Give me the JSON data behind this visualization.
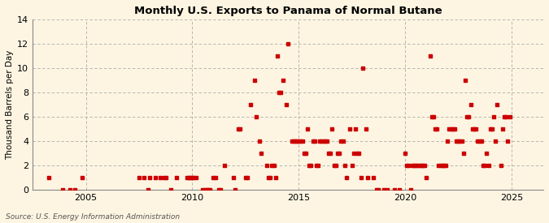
{
  "title": "Monthly U.S. Exports to Panama of Normal Butane",
  "ylabel": "Thousand Barrels per Day",
  "source": "Source: U.S. Energy Information Administration",
  "bg_color": "#fdf5e2",
  "plot_bg_color": "#fdf5e2",
  "marker_color": "#cc0000",
  "ylim": [
    0,
    14
  ],
  "yticks": [
    0,
    2,
    4,
    6,
    8,
    10,
    12,
    14
  ],
  "xlim": [
    2002.5,
    2026.5
  ],
  "xticks": [
    2005,
    2010,
    2015,
    2020,
    2025
  ],
  "data": [
    [
      2003.25,
      1
    ],
    [
      2003.92,
      0
    ],
    [
      2004.25,
      0
    ],
    [
      2004.5,
      0
    ],
    [
      2004.83,
      1
    ],
    [
      2007.5,
      1
    ],
    [
      2007.75,
      1
    ],
    [
      2007.92,
      0
    ],
    [
      2008.0,
      1
    ],
    [
      2008.25,
      1
    ],
    [
      2008.5,
      1
    ],
    [
      2008.67,
      1
    ],
    [
      2008.75,
      1
    ],
    [
      2009.0,
      0
    ],
    [
      2009.25,
      1
    ],
    [
      2009.75,
      1
    ],
    [
      2009.83,
      1
    ],
    [
      2009.92,
      1
    ],
    [
      2010.0,
      1
    ],
    [
      2010.08,
      1
    ],
    [
      2010.17,
      1
    ],
    [
      2010.5,
      0
    ],
    [
      2010.58,
      0
    ],
    [
      2010.67,
      0
    ],
    [
      2010.75,
      0
    ],
    [
      2010.83,
      0
    ],
    [
      2011.0,
      1
    ],
    [
      2011.08,
      1
    ],
    [
      2011.25,
      0
    ],
    [
      2011.33,
      0
    ],
    [
      2011.5,
      2
    ],
    [
      2011.92,
      1
    ],
    [
      2012.0,
      0
    ],
    [
      2012.17,
      5
    ],
    [
      2012.25,
      5
    ],
    [
      2012.5,
      1
    ],
    [
      2012.58,
      1
    ],
    [
      2012.75,
      7
    ],
    [
      2012.92,
      9
    ],
    [
      2013.0,
      6
    ],
    [
      2013.17,
      4
    ],
    [
      2013.25,
      3
    ],
    [
      2013.5,
      2
    ],
    [
      2013.58,
      1
    ],
    [
      2013.67,
      1
    ],
    [
      2013.75,
      2
    ],
    [
      2013.83,
      2
    ],
    [
      2013.92,
      1
    ],
    [
      2014.0,
      11
    ],
    [
      2014.08,
      8
    ],
    [
      2014.17,
      8
    ],
    [
      2014.25,
      9
    ],
    [
      2014.42,
      7
    ],
    [
      2014.5,
      12
    ],
    [
      2014.67,
      4
    ],
    [
      2014.75,
      4
    ],
    [
      2014.83,
      4
    ],
    [
      2014.92,
      4
    ],
    [
      2015.0,
      4
    ],
    [
      2015.08,
      4
    ],
    [
      2015.17,
      4
    ],
    [
      2015.25,
      3
    ],
    [
      2015.33,
      3
    ],
    [
      2015.42,
      5
    ],
    [
      2015.5,
      2
    ],
    [
      2015.58,
      2
    ],
    [
      2015.67,
      4
    ],
    [
      2015.75,
      4
    ],
    [
      2015.83,
      2
    ],
    [
      2015.92,
      2
    ],
    [
      2016.0,
      4
    ],
    [
      2016.08,
      4
    ],
    [
      2016.17,
      4
    ],
    [
      2016.25,
      4
    ],
    [
      2016.33,
      4
    ],
    [
      2016.42,
      3
    ],
    [
      2016.5,
      3
    ],
    [
      2016.58,
      5
    ],
    [
      2016.67,
      2
    ],
    [
      2016.75,
      2
    ],
    [
      2016.83,
      3
    ],
    [
      2016.92,
      3
    ],
    [
      2017.0,
      4
    ],
    [
      2017.08,
      4
    ],
    [
      2017.17,
      2
    ],
    [
      2017.25,
      1
    ],
    [
      2017.42,
      5
    ],
    [
      2017.5,
      2
    ],
    [
      2017.58,
      3
    ],
    [
      2017.67,
      5
    ],
    [
      2017.75,
      3
    ],
    [
      2017.83,
      3
    ],
    [
      2017.92,
      1
    ],
    [
      2018.0,
      10
    ],
    [
      2018.17,
      5
    ],
    [
      2018.25,
      1
    ],
    [
      2018.5,
      1
    ],
    [
      2018.67,
      0
    ],
    [
      2018.75,
      0
    ],
    [
      2019.0,
      0
    ],
    [
      2019.17,
      0
    ],
    [
      2019.5,
      0
    ],
    [
      2019.75,
      0
    ],
    [
      2020.0,
      3
    ],
    [
      2020.08,
      2
    ],
    [
      2020.17,
      2
    ],
    [
      2020.25,
      0
    ],
    [
      2020.33,
      2
    ],
    [
      2020.42,
      2
    ],
    [
      2020.5,
      2
    ],
    [
      2020.58,
      2
    ],
    [
      2020.67,
      2
    ],
    [
      2020.75,
      2
    ],
    [
      2020.83,
      2
    ],
    [
      2020.92,
      2
    ],
    [
      2021.0,
      1
    ],
    [
      2021.17,
      11
    ],
    [
      2021.25,
      6
    ],
    [
      2021.33,
      6
    ],
    [
      2021.42,
      5
    ],
    [
      2021.5,
      5
    ],
    [
      2021.58,
      2
    ],
    [
      2021.67,
      2
    ],
    [
      2021.75,
      2
    ],
    [
      2021.83,
      2
    ],
    [
      2021.92,
      2
    ],
    [
      2022.0,
      4
    ],
    [
      2022.08,
      5
    ],
    [
      2022.17,
      5
    ],
    [
      2022.25,
      5
    ],
    [
      2022.33,
      5
    ],
    [
      2022.42,
      4
    ],
    [
      2022.5,
      4
    ],
    [
      2022.58,
      4
    ],
    [
      2022.67,
      4
    ],
    [
      2022.75,
      3
    ],
    [
      2022.83,
      9
    ],
    [
      2022.92,
      6
    ],
    [
      2023.0,
      6
    ],
    [
      2023.08,
      7
    ],
    [
      2023.17,
      5
    ],
    [
      2023.25,
      5
    ],
    [
      2023.33,
      5
    ],
    [
      2023.42,
      4
    ],
    [
      2023.5,
      4
    ],
    [
      2023.58,
      4
    ],
    [
      2023.67,
      2
    ],
    [
      2023.75,
      2
    ],
    [
      2023.83,
      3
    ],
    [
      2023.92,
      2
    ],
    [
      2024.0,
      5
    ],
    [
      2024.08,
      5
    ],
    [
      2024.17,
      6
    ],
    [
      2024.25,
      4
    ],
    [
      2024.33,
      7
    ],
    [
      2024.5,
      2
    ],
    [
      2024.58,
      5
    ],
    [
      2024.67,
      6
    ],
    [
      2024.75,
      6
    ],
    [
      2024.83,
      4
    ],
    [
      2024.92,
      6
    ]
  ]
}
